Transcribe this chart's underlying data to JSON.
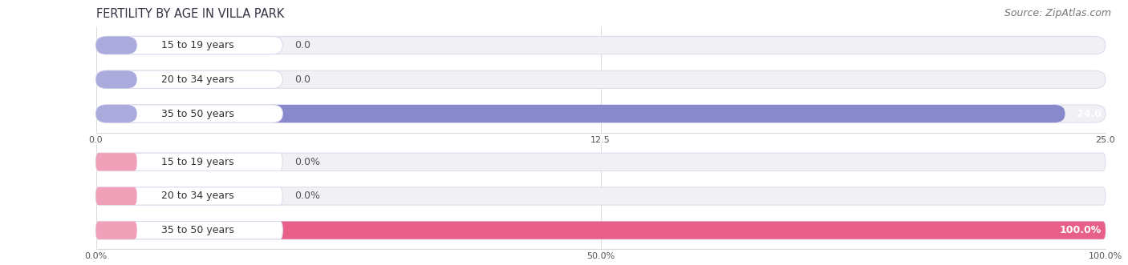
{
  "title": "FERTILITY BY AGE IN VILLA PARK",
  "source": "Source: ZipAtlas.com",
  "top_chart": {
    "categories": [
      "15 to 19 years",
      "20 to 34 years",
      "35 to 50 years"
    ],
    "values": [
      0.0,
      0.0,
      24.0
    ],
    "bar_color": "#8888cc",
    "label_pill_color": "#aaaadd",
    "xlim": [
      0,
      25
    ],
    "xticks": [
      0.0,
      12.5,
      25.0
    ],
    "is_percent": false
  },
  "bottom_chart": {
    "categories": [
      "15 to 19 years",
      "20 to 34 years",
      "35 to 50 years"
    ],
    "values": [
      0.0,
      0.0,
      100.0
    ],
    "bar_color": "#e8608a",
    "label_pill_color": "#f0a0b8",
    "xlim": [
      0,
      100
    ],
    "xticks": [
      0.0,
      50.0,
      100.0
    ],
    "is_percent": true
  },
  "bg_color": "#ffffff",
  "bar_bg_color": "#f0f0f5",
  "bar_bg_border": "#ddddee",
  "title_fontsize": 10.5,
  "source_fontsize": 9,
  "label_fontsize": 9,
  "value_fontsize": 9
}
